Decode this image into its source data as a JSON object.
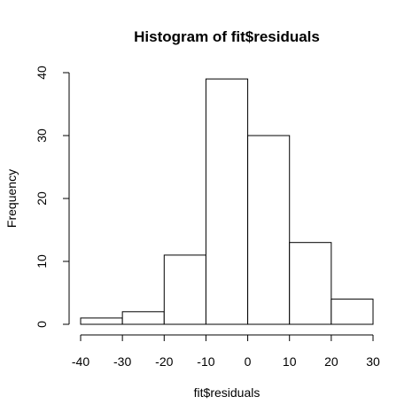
{
  "chart_data": {
    "type": "bar",
    "subtype": "histogram",
    "title": "Histogram of fit$residuals",
    "xlabel": "fit$residuals",
    "ylabel": "Frequency",
    "bins": [
      {
        "start": -40,
        "end": -30,
        "count": 1
      },
      {
        "start": -30,
        "end": -20,
        "count": 2
      },
      {
        "start": -20,
        "end": -10,
        "count": 11
      },
      {
        "start": -10,
        "end": 0,
        "count": 39
      },
      {
        "start": 0,
        "end": 10,
        "count": 30
      },
      {
        "start": 10,
        "end": 20,
        "count": 13
      },
      {
        "start": 20,
        "end": 30,
        "count": 4
      }
    ],
    "xlim": [
      -40,
      30
    ],
    "ylim": [
      0,
      40
    ],
    "x_ticks": [
      -40,
      -30,
      -20,
      -10,
      0,
      10,
      20,
      30
    ],
    "y_ticks": [
      0,
      10,
      20,
      30,
      40
    ],
    "grid": false,
    "bar_fill": "#ffffff",
    "bar_stroke": "#000000"
  }
}
